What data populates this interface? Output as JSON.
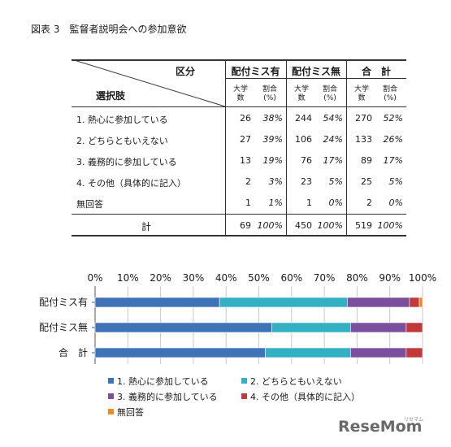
{
  "title": "図表 3　監督者説明会への参加意欲",
  "table": {
    "corner_top": "区分",
    "corner_bottom": "選択肢",
    "groups": [
      "配付ミス有",
      "配付ミス無",
      "合　計"
    ],
    "subheaders": [
      [
        "大学",
        "数"
      ],
      [
        "割合",
        "(%)"
      ]
    ],
    "rows": [
      {
        "label": "1. 熱心に参加している",
        "cells": [
          "26",
          "38%",
          "244",
          "54%",
          "270",
          "52%"
        ]
      },
      {
        "label": "2. どちらともいえない",
        "cells": [
          "27",
          "39%",
          "106",
          "24%",
          "133",
          "26%"
        ]
      },
      {
        "label": "3. 義務的に参加している",
        "cells": [
          "13",
          "19%",
          "76",
          "17%",
          "89",
          "17%"
        ]
      },
      {
        "label": "4. その他（具体的に記入）",
        "cells": [
          "2",
          "3%",
          "23",
          "5%",
          "25",
          "5%"
        ]
      },
      {
        "label": "無回答",
        "cells": [
          "1",
          "1%",
          "1",
          "0%",
          "2",
          "0%"
        ]
      }
    ],
    "total": {
      "label": "計",
      "cells": [
        "69",
        "100%",
        "450",
        "100%",
        "519",
        "100%"
      ]
    }
  },
  "chart_data": {
    "type": "bar",
    "orientation": "horizontal",
    "stacked": true,
    "categories": [
      "配付ミス有",
      "配付ミス無",
      "合　計"
    ],
    "series": [
      {
        "name": "1.  熱心に参加している",
        "values": [
          38,
          54,
          52
        ],
        "color": "#3f73b8"
      },
      {
        "name": "2.  どちらともいえない",
        "values": [
          39,
          24,
          26
        ],
        "color": "#33b0c4"
      },
      {
        "name": "3.  義務的に参加している",
        "values": [
          19,
          17,
          17
        ],
        "color": "#7b4f9e"
      },
      {
        "name": "4.  その他（具体的に記入）",
        "values": [
          3,
          5,
          5
        ],
        "color": "#c0393b"
      },
      {
        "name": "無回答",
        "values": [
          1,
          0,
          0
        ],
        "color": "#f08a24"
      }
    ],
    "xlim": [
      0,
      100
    ],
    "xticks": [
      "0%",
      "10%",
      "20%",
      "30%",
      "40%",
      "50%",
      "60%",
      "70%",
      "80%",
      "90%",
      "100%"
    ],
    "legend_position": "bottom",
    "grid": true
  },
  "watermark": {
    "brand": "ReseMom",
    "small": "リセマム"
  }
}
